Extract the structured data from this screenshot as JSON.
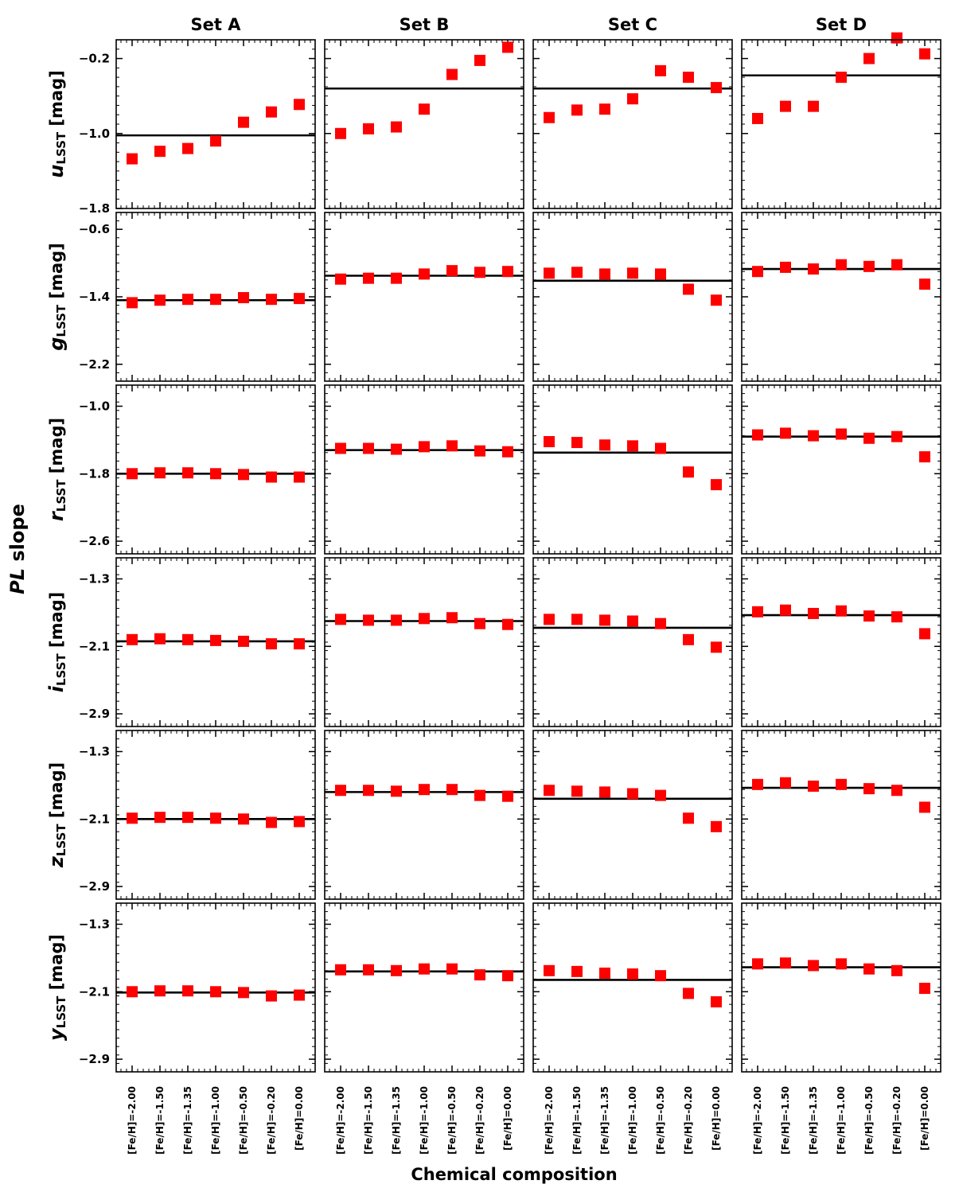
{
  "figure": {
    "ylabel_italic": "PL",
    "ylabel_rest": " slope",
    "xlabel": "Chemical composition"
  },
  "chart_data": {
    "type": "scatter",
    "columns": [
      "Set A",
      "Set B",
      "Set C",
      "Set D"
    ],
    "x_categories": [
      "[Fe/H]=-2.00",
      "[Fe/H]=-1.50",
      "[Fe/H]=-1.35",
      "[Fe/H]=-1.00",
      "[Fe/H]=-0.50",
      "[Fe/H]=-0.20",
      "[Fe/H]=0.00"
    ],
    "colors": {
      "points": "#ff0000",
      "line": "#000000"
    },
    "rows": [
      {
        "band": "u",
        "sub": "LSST",
        "unit": " [mag]",
        "ylim": [
          -1.8,
          -0.0
        ],
        "yticks": [
          -0.2,
          -1.0,
          -1.8
        ],
        "yticklabels": [
          "−0.2",
          "−1.0",
          "−1.8"
        ],
        "panels": [
          {
            "line": -1.02,
            "values": [
              -1.27,
              -1.19,
              -1.16,
              -1.08,
              -0.88,
              -0.77,
              -0.69
            ]
          },
          {
            "line": -0.52,
            "values": [
              -1.0,
              -0.95,
              -0.93,
              -0.74,
              -0.37,
              -0.22,
              -0.08
            ]
          },
          {
            "line": -0.52,
            "values": [
              -0.83,
              -0.75,
              -0.74,
              -0.63,
              -0.33,
              -0.4,
              -0.51
            ]
          },
          {
            "line": -0.38,
            "values": [
              -0.84,
              -0.71,
              -0.71,
              -0.4,
              -0.2,
              0.02,
              -0.15
            ]
          }
        ]
      },
      {
        "band": "g",
        "sub": "LSST",
        "unit": " [mag]",
        "ylim": [
          -2.4,
          -0.4
        ],
        "yticks": [
          -0.6,
          -1.4,
          -2.2
        ],
        "yticklabels": [
          "−0.6",
          "−1.4",
          "−2.2"
        ],
        "panels": [
          {
            "line": -1.44,
            "values": [
              -1.47,
              -1.44,
              -1.43,
              -1.43,
              -1.41,
              -1.43,
              -1.42
            ]
          },
          {
            "line": -1.15,
            "values": [
              -1.19,
              -1.18,
              -1.18,
              -1.13,
              -1.09,
              -1.11,
              -1.1
            ]
          },
          {
            "line": -1.21,
            "values": [
              -1.12,
              -1.11,
              -1.13,
              -1.12,
              -1.13,
              -1.31,
              -1.44
            ]
          },
          {
            "line": -1.07,
            "values": [
              -1.1,
              -1.05,
              -1.07,
              -1.02,
              -1.04,
              -1.02,
              -1.25
            ]
          }
        ]
      },
      {
        "band": "r",
        "sub": "LSST",
        "unit": " [mag]",
        "ylim": [
          -2.75,
          -0.75
        ],
        "yticks": [
          -1.0,
          -1.8,
          -2.6
        ],
        "yticklabels": [
          "−1.0",
          "−1.8",
          "−2.6"
        ],
        "panels": [
          {
            "line": -1.8,
            "values": [
              -1.8,
              -1.79,
              -1.79,
              -1.8,
              -1.81,
              -1.84,
              -1.84
            ]
          },
          {
            "line": -1.52,
            "values": [
              -1.5,
              -1.5,
              -1.51,
              -1.48,
              -1.47,
              -1.53,
              -1.54
            ]
          },
          {
            "line": -1.55,
            "values": [
              -1.42,
              -1.43,
              -1.46,
              -1.47,
              -1.5,
              -1.78,
              -1.93
            ]
          },
          {
            "line": -1.36,
            "values": [
              -1.34,
              -1.32,
              -1.35,
              -1.33,
              -1.38,
              -1.36,
              -1.6
            ]
          }
        ]
      },
      {
        "band": "i",
        "sub": "LSST",
        "unit": " [mag]",
        "ylim": [
          -3.05,
          -1.05
        ],
        "yticks": [
          -1.3,
          -2.1,
          -2.9
        ],
        "yticklabels": [
          "−1.3",
          "−2.1",
          "−2.9"
        ],
        "panels": [
          {
            "line": -2.04,
            "values": [
              -2.02,
              -2.01,
              -2.02,
              -2.03,
              -2.04,
              -2.07,
              -2.07
            ]
          },
          {
            "line": -1.8,
            "values": [
              -1.78,
              -1.79,
              -1.79,
              -1.77,
              -1.76,
              -1.83,
              -1.84
            ]
          },
          {
            "line": -1.88,
            "values": [
              -1.78,
              -1.78,
              -1.79,
              -1.8,
              -1.83,
              -2.02,
              -2.11
            ]
          },
          {
            "line": -1.73,
            "values": [
              -1.69,
              -1.67,
              -1.71,
              -1.68,
              -1.74,
              -1.75,
              -1.95
            ]
          }
        ]
      },
      {
        "band": "z",
        "sub": "LSST",
        "unit": " [mag]",
        "ylim": [
          -3.05,
          -1.05
        ],
        "yticks": [
          -1.3,
          -2.1,
          -2.9
        ],
        "yticklabels": [
          "−1.3",
          "−2.1",
          "−2.9"
        ],
        "panels": [
          {
            "line": -2.1,
            "values": [
              -2.09,
              -2.08,
              -2.08,
              -2.09,
              -2.1,
              -2.14,
              -2.13
            ]
          },
          {
            "line": -1.78,
            "values": [
              -1.76,
              -1.76,
              -1.77,
              -1.75,
              -1.75,
              -1.82,
              -1.83
            ]
          },
          {
            "line": -1.86,
            "values": [
              -1.76,
              -1.77,
              -1.78,
              -1.8,
              -1.82,
              -2.09,
              -2.19
            ]
          },
          {
            "line": -1.73,
            "values": [
              -1.69,
              -1.67,
              -1.71,
              -1.69,
              -1.74,
              -1.76,
              -1.96
            ]
          }
        ]
      },
      {
        "band": "y",
        "sub": "LSST",
        "unit": " [mag]",
        "ylim": [
          -3.05,
          -1.05
        ],
        "yticks": [
          -1.3,
          -2.1,
          -2.9
        ],
        "yticklabels": [
          "−1.3",
          "−2.1",
          "−2.9"
        ],
        "panels": [
          {
            "line": -2.11,
            "values": [
              -2.1,
              -2.09,
              -2.09,
              -2.1,
              -2.11,
              -2.15,
              -2.14
            ]
          },
          {
            "line": -1.86,
            "values": [
              -1.84,
              -1.84,
              -1.85,
              -1.83,
              -1.83,
              -1.9,
              -1.91
            ]
          },
          {
            "line": -1.96,
            "values": [
              -1.85,
              -1.86,
              -1.88,
              -1.89,
              -1.91,
              -2.12,
              -2.22
            ]
          },
          {
            "line": -1.81,
            "values": [
              -1.77,
              -1.76,
              -1.79,
              -1.77,
              -1.83,
              -1.85,
              -2.06
            ]
          }
        ]
      }
    ]
  }
}
